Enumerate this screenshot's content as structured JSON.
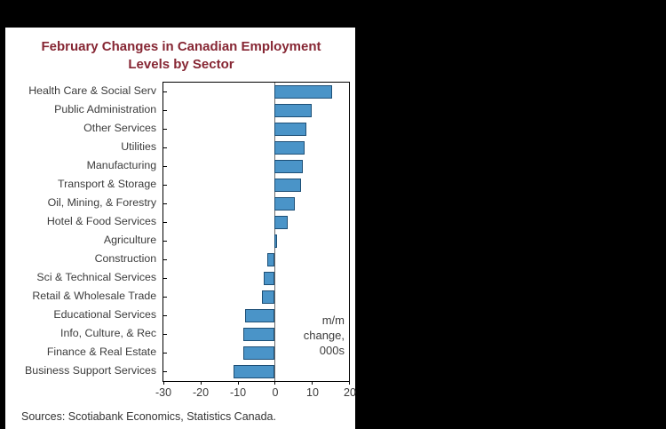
{
  "chart": {
    "title_line1": "February Changes in Canadian Employment",
    "title_line2": "Levels by Sector",
    "annotation_lines": [
      "m/m",
      "change,",
      "000s"
    ],
    "source": "Sources: Scotiabank Economics, Statistics Canada.",
    "colors": {
      "title": "#862633",
      "bar_fill": "#4a94c8",
      "bar_border": "#1d4f76",
      "card_background": "#ffffff",
      "page_background": "#000000"
    }
  },
  "chart_data": {
    "type": "bar",
    "orientation": "horizontal",
    "title": "February Changes in Canadian Employment Levels by Sector",
    "categories": [
      "Health Care & Social Serv",
      "Public Administration",
      "Other Services",
      "Utilities",
      "Manufacturing",
      "Transport & Storage",
      "Oil, Mining, & Forestry",
      "Hotel & Food Services",
      "Agriculture",
      "Construction",
      "Sci & Technical Services",
      "Retail & Wholesale Trade",
      "Educational Services",
      "Info, Culture, & Rec",
      "Finance & Real Estate",
      "Business Support Services"
    ],
    "values": [
      15.5,
      10,
      8.5,
      8,
      7.5,
      7,
      5.5,
      3.5,
      0.5,
      -2,
      -3,
      -3.5,
      -8,
      -8.5,
      -8.5,
      -11
    ],
    "xlim": [
      -30,
      20
    ],
    "xticks": [
      -30,
      -20,
      -10,
      0,
      10,
      20
    ],
    "xlabel": "",
    "ylabel": "",
    "grid": false,
    "legend": false,
    "annotation": "m/m change, 000s",
    "source": "Sources: Scotiabank Economics, Statistics Canada."
  }
}
